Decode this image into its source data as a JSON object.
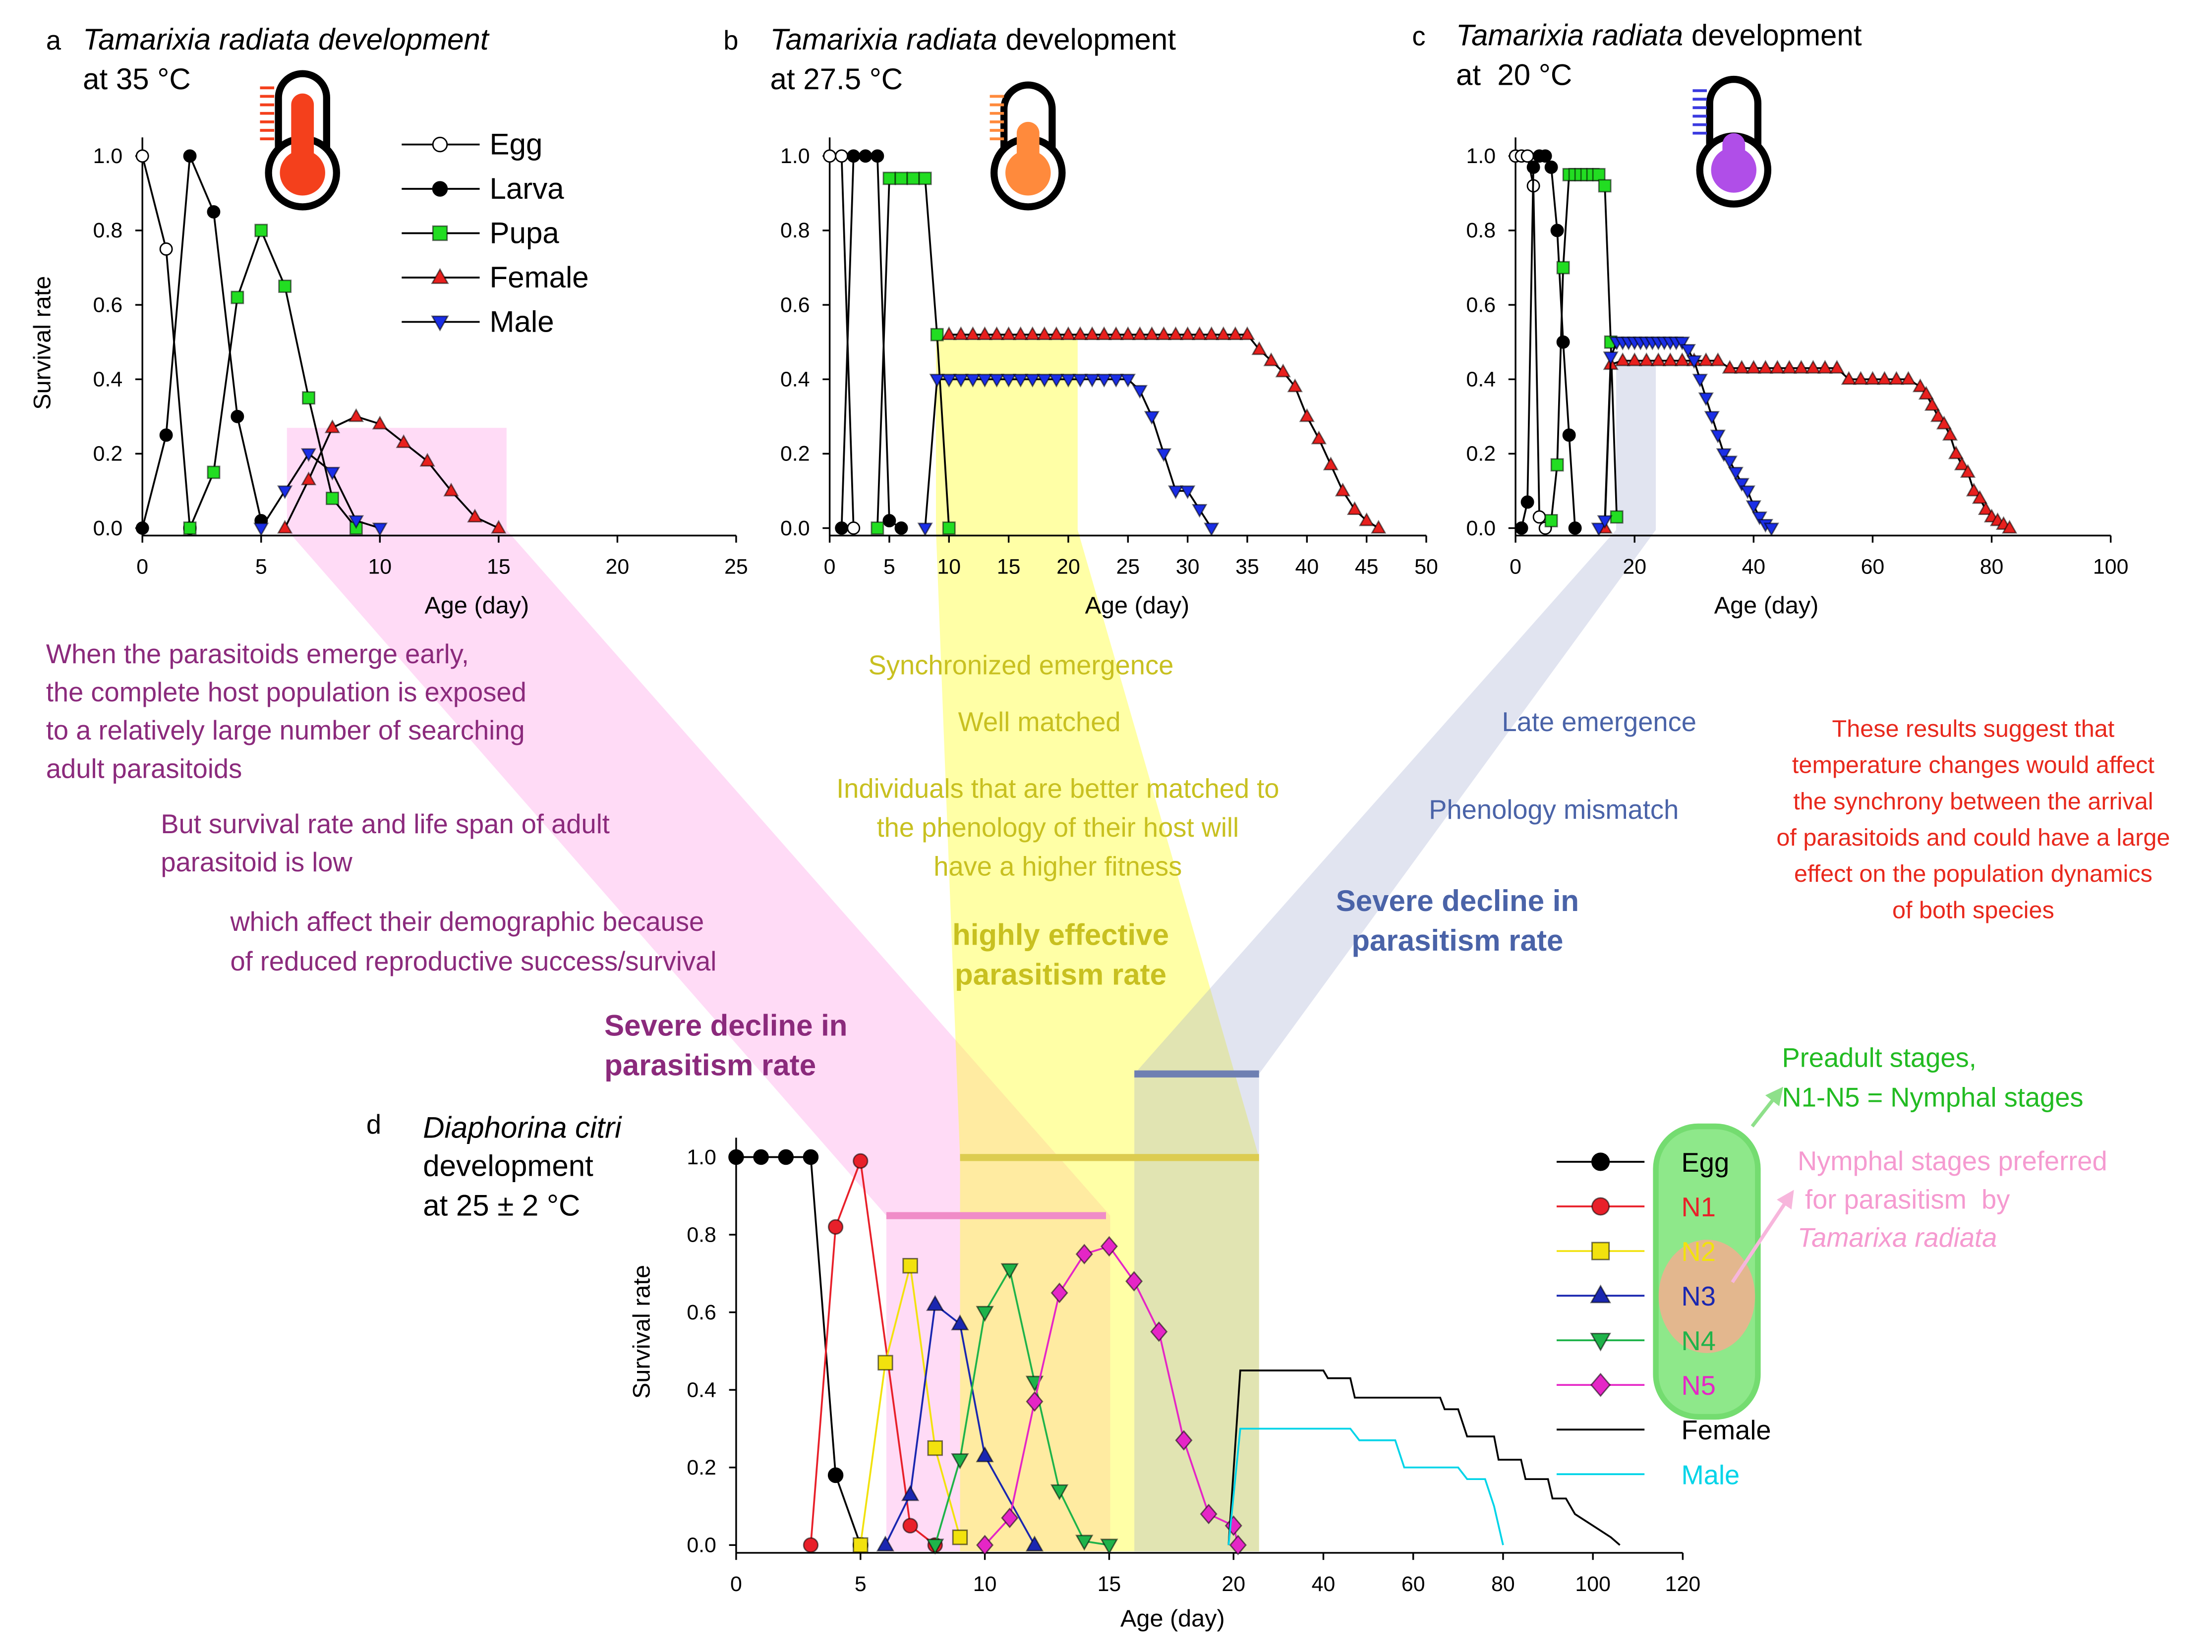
{
  "chart_data": [
    {
      "type": "line",
      "label": "a",
      "title_italic": "Tamarixia radiata development",
      "subtitle": "at 35 °C",
      "xlabel": "Age (day)",
      "ylabel": "Survival rate",
      "legend": "upper right",
      "line_color": "#000000",
      "grid": false,
      "xlim": [
        0,
        25
      ],
      "xticks": [
        0,
        5,
        10,
        15,
        20,
        25
      ],
      "ylim": [
        -0.02,
        1.05
      ],
      "yticks": [
        {
          "value": 0,
          "label": "0.0"
        },
        0.2,
        0.4,
        0.6,
        0.8,
        {
          "value": 1,
          "label": "1.0"
        }
      ],
      "series": [
        {
          "name": "Egg",
          "marker": "circle-open",
          "color": "#000000",
          "x": [
            0,
            1,
            2
          ],
          "values": [
            1,
            0.75,
            0
          ]
        },
        {
          "name": "Larva",
          "marker": "circle",
          "color": "#000000",
          "x": [
            0,
            1,
            2,
            3,
            4,
            5
          ],
          "values": [
            0,
            0.25,
            1,
            0.85,
            0.3,
            0.02
          ]
        },
        {
          "name": "Pupa",
          "marker": "square",
          "color": "#22dd22",
          "x": [
            2,
            3,
            4,
            5,
            6,
            7,
            8,
            9
          ],
          "values": [
            0,
            0.15,
            0.62,
            0.8,
            0.65,
            0.35,
            0.08,
            0
          ]
        },
        {
          "name": "Female",
          "marker": "triangle",
          "color": "#e8201e",
          "x": [
            6,
            7,
            8,
            9,
            10,
            11,
            12,
            13,
            14,
            15
          ],
          "values": [
            0,
            0.13,
            0.27,
            0.3,
            0.28,
            0.23,
            0.18,
            0.1,
            0.03,
            0
          ]
        },
        {
          "name": "Male",
          "marker": "triangle-down",
          "color": "#1a2ee6",
          "x": [
            5,
            6,
            7,
            8,
            9,
            10
          ],
          "values": [
            0,
            0.1,
            0.2,
            0.15,
            0.02,
            0
          ]
        }
      ]
    },
    {
      "type": "line",
      "label": "b",
      "title_italic": "Tamarixia radiata",
      "title": " development",
      "subtitle": "at 27.5 °C",
      "xlabel": "Age (day)",
      "line_color": "#000000",
      "grid": false,
      "xlim": [
        0,
        50
      ],
      "xticks": [
        0,
        5,
        10,
        15,
        20,
        25,
        30,
        35,
        40,
        45,
        50
      ],
      "ylim": [
        -0.02,
        1.05
      ],
      "yticks": [
        {
          "value": 0,
          "label": "0.0"
        },
        0.2,
        0.4,
        0.6,
        0.8,
        {
          "value": 1,
          "label": "1.0"
        }
      ],
      "series": [
        {
          "marker": "circle-open",
          "color": "#000000",
          "x": [
            0,
            1,
            2
          ],
          "values": [
            1,
            1,
            0
          ]
        },
        {
          "marker": "circle",
          "color": "#000000",
          "x": [
            1,
            2,
            3,
            4,
            5,
            6
          ],
          "values": [
            0,
            1,
            1,
            1,
            0.02,
            0
          ]
        },
        {
          "marker": "square",
          "color": "#22dd22",
          "x": [
            4,
            5,
            6,
            7,
            8,
            9,
            10
          ],
          "values": [
            0,
            0.94,
            0.94,
            0.94,
            0.94,
            0.52,
            0
          ]
        },
        {
          "marker": "triangle",
          "color": "#e8201e",
          "x": [
            10,
            11,
            12,
            13,
            14,
            15,
            16,
            17,
            18,
            19,
            20,
            21,
            22,
            23,
            24,
            25,
            26,
            27,
            28,
            29,
            30,
            31,
            32,
            33,
            34,
            35,
            36,
            37,
            38,
            39,
            40,
            41,
            42,
            43,
            44,
            45,
            46
          ],
          "values": [
            0.52,
            0.52,
            0.52,
            0.52,
            0.52,
            0.52,
            0.52,
            0.52,
            0.52,
            0.52,
            0.52,
            0.52,
            0.52,
            0.52,
            0.52,
            0.52,
            0.52,
            0.52,
            0.52,
            0.52,
            0.52,
            0.52,
            0.52,
            0.52,
            0.52,
            0.52,
            0.48,
            0.45,
            0.42,
            0.38,
            0.3,
            0.24,
            0.17,
            0.1,
            0.05,
            0.02,
            0
          ]
        },
        {
          "marker": "triangle-down",
          "color": "#1a2ee6",
          "x": [
            8,
            9,
            10,
            11,
            12,
            13,
            14,
            15,
            16,
            17,
            18,
            19,
            20,
            21,
            22,
            23,
            24,
            25,
            26,
            27,
            28,
            29,
            30,
            31,
            32
          ],
          "values": [
            0,
            0.4,
            0.4,
            0.4,
            0.4,
            0.4,
            0.4,
            0.4,
            0.4,
            0.4,
            0.4,
            0.4,
            0.4,
            0.4,
            0.4,
            0.4,
            0.4,
            0.4,
            0.37,
            0.3,
            0.2,
            0.1,
            0.1,
            0.05,
            0
          ]
        }
      ]
    },
    {
      "type": "line",
      "label": "c",
      "title_italic": "Tamarixia radiata",
      "title": " development",
      "subtitle": "at  20 °C",
      "xlabel": "Age (day)",
      "line_color": "#000000",
      "grid": false,
      "xlim": [
        0,
        100
      ],
      "xticks": [
        0,
        20,
        40,
        60,
        80,
        100
      ],
      "ylim": [
        -0.02,
        1.05
      ],
      "yticks": [
        {
          "value": 0,
          "label": "0.0"
        },
        0.2,
        0.4,
        0.6,
        0.8,
        {
          "value": 1,
          "label": "1.0"
        }
      ],
      "series": [
        {
          "marker": "circle-open",
          "color": "#000000",
          "x": [
            0,
            1,
            2,
            3,
            4,
            5
          ],
          "values": [
            1,
            1,
            1,
            0.92,
            0.03,
            0
          ]
        },
        {
          "marker": "circle",
          "color": "#000000",
          "x": [
            1,
            2,
            3,
            4,
            5,
            6,
            7,
            8,
            9,
            10
          ],
          "values": [
            0,
            0.07,
            0.97,
            1,
            1,
            0.97,
            0.8,
            0.5,
            0.25,
            0
          ]
        },
        {
          "marker": "square",
          "color": "#22dd22",
          "x": [
            6,
            7,
            8,
            9,
            10,
            11,
            12,
            13,
            14,
            15,
            16,
            17
          ],
          "values": [
            0.02,
            0.17,
            0.7,
            0.95,
            0.95,
            0.95,
            0.95,
            0.95,
            0.95,
            0.92,
            0.5,
            0.03
          ]
        },
        {
          "marker": "triangle",
          "color": "#e8201e",
          "x": [
            15,
            16,
            18,
            20,
            22,
            24,
            26,
            28,
            30,
            32,
            34,
            36,
            38,
            40,
            42,
            44,
            46,
            48,
            50,
            52,
            54,
            56,
            58,
            60,
            62,
            64,
            66,
            68,
            69,
            70,
            71,
            72,
            73,
            74,
            75,
            76,
            77,
            78,
            79,
            80,
            81,
            82,
            83
          ],
          "values": [
            0,
            0.44,
            0.45,
            0.45,
            0.45,
            0.45,
            0.45,
            0.45,
            0.45,
            0.45,
            0.45,
            0.43,
            0.43,
            0.43,
            0.43,
            0.43,
            0.43,
            0.43,
            0.43,
            0.43,
            0.43,
            0.4,
            0.4,
            0.4,
            0.4,
            0.4,
            0.4,
            0.38,
            0.36,
            0.33,
            0.3,
            0.28,
            0.25,
            0.2,
            0.17,
            0.15,
            0.1,
            0.08,
            0.05,
            0.03,
            0.02,
            0.01,
            0
          ]
        },
        {
          "marker": "triangle-down",
          "color": "#1a2ee6",
          "x": [
            14,
            15,
            16,
            17,
            18,
            19,
            20,
            21,
            22,
            23,
            24,
            25,
            26,
            27,
            28,
            29,
            30,
            31,
            32,
            33,
            34,
            35,
            36,
            37,
            38,
            39,
            40,
            41,
            42,
            43
          ],
          "values": [
            0,
            0.02,
            0.46,
            0.5,
            0.5,
            0.5,
            0.5,
            0.5,
            0.5,
            0.5,
            0.5,
            0.5,
            0.5,
            0.5,
            0.5,
            0.48,
            0.45,
            0.4,
            0.35,
            0.3,
            0.25,
            0.2,
            0.18,
            0.15,
            0.12,
            0.1,
            0.06,
            0.03,
            0.01,
            0
          ]
        }
      ]
    },
    {
      "type": "line",
      "label": "d",
      "title_italic": "Diaphorina citri",
      "title": "development",
      "subtitle": "at 25 ± 2 °C",
      "xlabel": "Age (day)",
      "ylabel": "Survival rate",
      "legend": "right",
      "grid": false,
      "xlim": [
        0,
        120
      ],
      "xbreak": 20,
      "xticks": [
        0,
        5,
        10,
        15,
        20,
        40,
        60,
        80,
        100,
        120
      ],
      "ylim": [
        -0.02,
        1.05
      ],
      "yticks": [
        {
          "value": 0,
          "label": "0.0"
        },
        0.2,
        0.4,
        0.6,
        0.8,
        {
          "value": 1,
          "label": "1.0"
        }
      ],
      "series": [
        {
          "name": "Egg",
          "marker": "circle",
          "color": "#000000",
          "x": [
            0,
            1,
            2,
            3,
            4,
            5
          ],
          "values": [
            1,
            1,
            1,
            1,
            0.18,
            0
          ]
        },
        {
          "name": "N1",
          "marker": "circle",
          "color": "#e8202a",
          "x": [
            3,
            4,
            5,
            7,
            8
          ],
          "values": [
            0,
            0.82,
            0.99,
            0.05,
            0
          ]
        },
        {
          "name": "N2",
          "marker": "square",
          "color": "#f2e20e",
          "x": [
            5,
            6,
            7,
            8,
            9
          ],
          "values": [
            0,
            0.47,
            0.72,
            0.25,
            0.02
          ]
        },
        {
          "name": "N3",
          "marker": "triangle",
          "color": "#1a27b0",
          "x": [
            6,
            7,
            8,
            9,
            10,
            12
          ],
          "values": [
            0,
            0.13,
            0.62,
            0.57,
            0.23,
            0
          ]
        },
        {
          "name": "N4",
          "marker": "triangle-down",
          "color": "#1fb34a",
          "x": [
            8,
            9,
            10,
            11,
            12,
            13,
            14,
            15
          ],
          "values": [
            0,
            0.22,
            0.6,
            0.71,
            0.42,
            0.14,
            0.01,
            0
          ]
        },
        {
          "name": "N5",
          "marker": "diamond",
          "color": "#e526c6",
          "x": [
            10,
            11,
            12,
            13,
            14,
            15,
            16,
            17,
            18,
            19,
            20,
            21
          ],
          "values": [
            0,
            0.07,
            0.37,
            0.65,
            0.75,
            0.77,
            0.68,
            0.55,
            0.27,
            0.08,
            0.05,
            0
          ]
        },
        {
          "name": "Female",
          "marker": "none",
          "color": "#000000",
          "x": [
            19.8,
            21.5,
            40,
            41,
            46,
            47,
            66,
            67,
            70,
            72,
            78,
            79,
            84,
            85,
            90,
            91,
            94,
            96,
            100,
            104,
            106
          ],
          "values": [
            0,
            0.45,
            0.45,
            0.43,
            0.43,
            0.38,
            0.38,
            0.35,
            0.35,
            0.28,
            0.28,
            0.22,
            0.22,
            0.17,
            0.17,
            0.12,
            0.12,
            0.08,
            0.05,
            0.02,
            0
          ]
        },
        {
          "name": "Male",
          "marker": "none",
          "color": "#00d4e8",
          "x": [
            19.8,
            21.5,
            46,
            48,
            56,
            58,
            70,
            72,
            76,
            78,
            80
          ],
          "values": [
            0,
            0.3,
            0.3,
            0.27,
            0.27,
            0.2,
            0.2,
            0.17,
            0.17,
            0.1,
            0
          ]
        }
      ]
    }
  ],
  "annotations": [
    {
      "color": "#8b2a7c",
      "lines": [
        "When the parasitoids emerge early,",
        "the complete host population is exposed",
        "to a relatively large number of searching",
        "adult parasitoids"
      ]
    },
    {
      "color": "#8b2a7c",
      "lines": [
        "But survival rate and life span of adult",
        "parasitoid is low"
      ]
    },
    {
      "color": "#8b2a7c",
      "lines": [
        "which affect their demographic because",
        "of reduced reproductive success/survival"
      ]
    },
    {
      "color": "#8b2a7c",
      "bold": true,
      "lines": [
        "Severe decline in",
        "parasitism rate"
      ]
    },
    {
      "color": "#c8c020",
      "lines": [
        "Synchronized emergence"
      ]
    },
    {
      "color": "#c8c020",
      "lines": [
        "Well matched"
      ]
    },
    {
      "color": "#c8c020",
      "lines": [
        "Individuals that are better matched to",
        "the phenology of their host will",
        "have a higher fitness"
      ]
    },
    {
      "color": "#c8c020",
      "bold": true,
      "lines": [
        "highly effective",
        "parasitism rate"
      ]
    },
    {
      "color": "#4a63a8",
      "lines": [
        "Late emergence"
      ]
    },
    {
      "color": "#4a63a8",
      "lines": [
        "Phenology mismatch"
      ]
    },
    {
      "color": "#4a63a8",
      "bold": true,
      "lines": [
        "Severe decline in",
        "parasitism rate"
      ]
    },
    {
      "color": "#e8281c",
      "lines": [
        "These results suggest that",
        "temperature changes would affect",
        "the synchrony between the arrival",
        "of parasitoids and could have a large",
        "effect on the population dynamics",
        "of both species"
      ]
    },
    {
      "color": "#22bb22",
      "lines": [
        "Preadult stages,",
        "N1-N5 = Nymphal stages"
      ]
    },
    {
      "color": "#f59ad0",
      "lines": [
        "Nymphal stages preferred",
        " for parasitism  by"
      ]
    },
    {
      "color": "#f59ad0",
      "italic": true,
      "lines": [
        "Tamarixa radiata"
      ]
    }
  ]
}
